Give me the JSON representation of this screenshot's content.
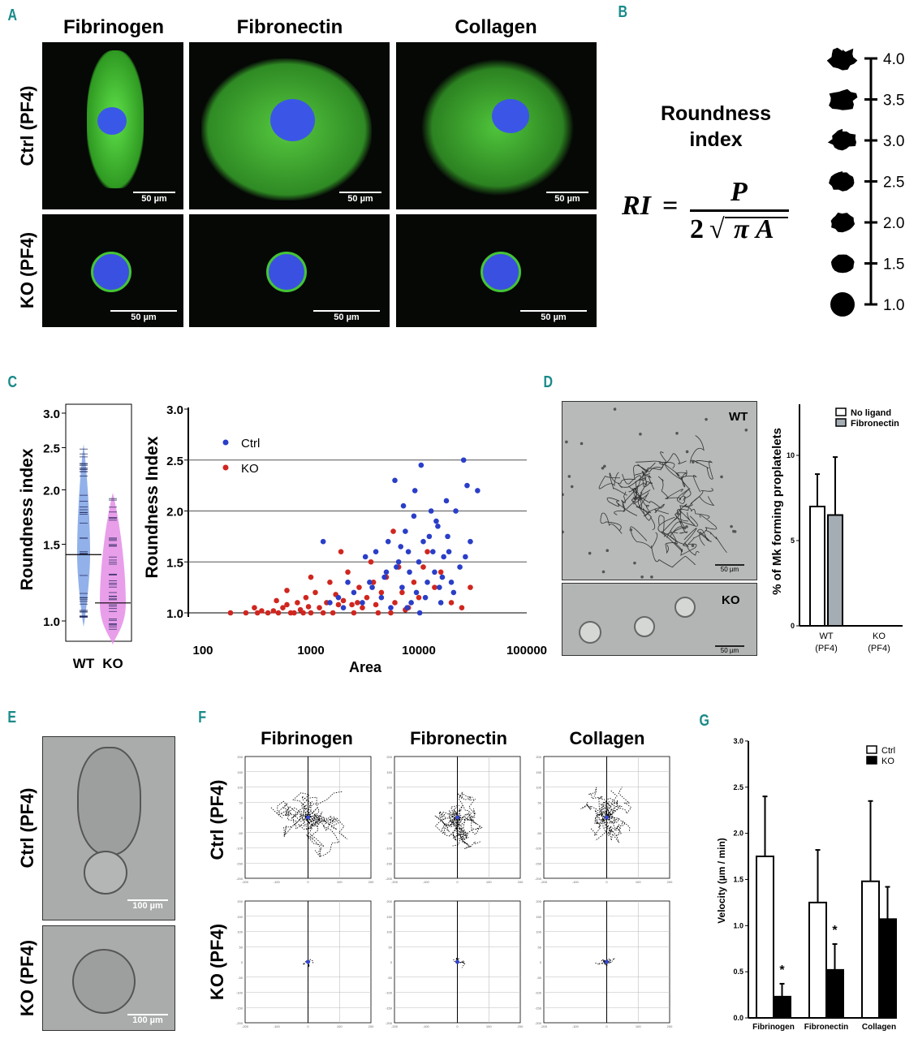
{
  "panels": {
    "a": "A",
    "b": "B",
    "c": "C",
    "d": "D",
    "e": "E",
    "f": "F",
    "g": "G"
  },
  "panel_a": {
    "columns": [
      "Fibrinogen",
      "Fibronectin",
      "Collagen"
    ],
    "rows": [
      "Ctrl (PF4)",
      "KO (PF4)"
    ],
    "scale": "50 µm"
  },
  "panel_b": {
    "title_line1": "Roundness",
    "title_line2": "index",
    "formula_lhs": "RI",
    "formula_num": "P",
    "formula_den_2": "2",
    "formula_den_rad": "π A",
    "scale_ticks": [
      "4.0",
      "3.5",
      "3.0",
      "2.5",
      "2.0",
      "1.5",
      "1.0"
    ]
  },
  "panel_d": {
    "img_wt": "WT",
    "img_ko": "KO",
    "scale": "50 µm"
  },
  "panel_e": {
    "rows": [
      "Ctrl (PF4)",
      "KO (PF4)"
    ],
    "scale": "100 µm"
  },
  "panel_f": {
    "columns": [
      "Fibrinogen",
      "Fibronectin",
      "Collagen"
    ],
    "rows": [
      "Ctrl (PF4)",
      "KO (PF4)"
    ],
    "x_ticks": [
      "-200",
      "-100",
      "0",
      "100",
      "200"
    ],
    "y_ticks": [
      "200",
      "150",
      "100",
      "50",
      "0",
      "-50",
      "-100",
      "-150",
      "-200"
    ]
  },
  "chart_data": [
    {
      "type": "violin",
      "title": "",
      "ylabel": "Roundness index",
      "yscale": "log",
      "ylim": [
        0.85,
        3.0
      ],
      "yticks": [
        "3.0",
        "2.5",
        "2.0",
        "1.5",
        "1.0"
      ],
      "categories": [
        "WT",
        "KO"
      ],
      "medians": [
        1.42,
        1.1
      ],
      "ranges": [
        [
          0.97,
          2.55
        ],
        [
          0.88,
          1.97
        ]
      ],
      "colors": [
        "#7fa3e6",
        "#e58de6"
      ]
    },
    {
      "type": "scatter",
      "xlabel": "Area",
      "ylabel": "Roundness Index",
      "xscale": "log",
      "xlim": [
        100,
        100000
      ],
      "ylim": [
        1.0,
        3.0
      ],
      "xticks": [
        "100",
        "1000",
        "10000",
        "100000"
      ],
      "yticks": [
        "3.0",
        "2.5",
        "2.0",
        "1.5",
        "1.0"
      ],
      "legend": "top-left",
      "series": [
        {
          "name": "Ctrl",
          "color": "#2a3ec8",
          "points": [
            [
              1300,
              1.7
            ],
            [
              1500,
              1.1
            ],
            [
              2000,
              1.05
            ],
            [
              2500,
              1.2
            ],
            [
              3000,
              1.1
            ],
            [
              3500,
              1.3
            ],
            [
              4000,
              1.6
            ],
            [
              4500,
              1.15
            ],
            [
              5000,
              1.4
            ],
            [
              5500,
              1.05
            ],
            [
              6000,
              2.3
            ],
            [
              6500,
              1.5
            ],
            [
              7000,
              1.25
            ],
            [
              7500,
              1.8
            ],
            [
              8000,
              1.6
            ],
            [
              8500,
              1.1
            ],
            [
              9000,
              1.95
            ],
            [
              10000,
              1.5
            ],
            [
              10500,
              2.45
            ],
            [
              11000,
              1.7
            ],
            [
              12000,
              1.3
            ],
            [
              13000,
              2.0
            ],
            [
              14000,
              1.4
            ],
            [
              15000,
              1.85
            ],
            [
              16000,
              1.1
            ],
            [
              17000,
              1.55
            ],
            [
              18000,
              2.1
            ],
            [
              20000,
              1.3
            ],
            [
              22000,
              2.0
            ],
            [
              24000,
              1.45
            ],
            [
              26000,
              2.5
            ],
            [
              28000,
              2.25
            ],
            [
              30000,
              1.7
            ],
            [
              35000,
              2.2
            ],
            [
              9500,
              1.2
            ],
            [
              8200,
              1.4
            ],
            [
              12500,
              1.75
            ],
            [
              11500,
              1.15
            ],
            [
              7800,
              1.05
            ],
            [
              6800,
              1.65
            ],
            [
              14500,
              1.9
            ],
            [
              16500,
              1.35
            ],
            [
              19000,
              1.6
            ],
            [
              21000,
              1.2
            ],
            [
              5200,
              1.7
            ],
            [
              4800,
              1.35
            ],
            [
              3200,
              1.55
            ],
            [
              2200,
              1.3
            ],
            [
              1800,
              1.15
            ],
            [
              10200,
              1.0
            ],
            [
              9200,
              2.2
            ],
            [
              13500,
              1.6
            ],
            [
              15500,
              1.25
            ],
            [
              18500,
              1.75
            ],
            [
              6200,
              1.45
            ],
            [
              7200,
              2.05
            ],
            [
              3700,
              1.25
            ],
            [
              27000,
              1.55
            ]
          ]
        },
        {
          "name": "KO",
          "color": "#d0261f",
          "points": [
            [
              180,
              1.0
            ],
            [
              300,
              1.05
            ],
            [
              320,
              1.0
            ],
            [
              400,
              1.0
            ],
            [
              450,
              1.02
            ],
            [
              500,
              1.0
            ],
            [
              600,
              1.08
            ],
            [
              700,
              1.0
            ],
            [
              800,
              1.03
            ],
            [
              900,
              1.15
            ],
            [
              1000,
              1.0
            ],
            [
              1100,
              1.2
            ],
            [
              1200,
              1.05
            ],
            [
              1400,
              1.1
            ],
            [
              1500,
              1.3
            ],
            [
              1600,
              1.0
            ],
            [
              1800,
              1.08
            ],
            [
              2000,
              1.12
            ],
            [
              2200,
              1.4
            ],
            [
              2500,
              1.0
            ],
            [
              2800,
              1.25
            ],
            [
              3000,
              1.05
            ],
            [
              3300,
              1.15
            ],
            [
              3600,
              1.5
            ],
            [
              4000,
              1.08
            ],
            [
              4500,
              1.2
            ],
            [
              5000,
              1.35
            ],
            [
              5500,
              1.0
            ],
            [
              6000,
              1.1
            ],
            [
              6500,
              1.45
            ],
            [
              7000,
              1.2
            ],
            [
              8000,
              1.05
            ],
            [
              9000,
              1.3
            ],
            [
              10000,
              1.15
            ],
            [
              12000,
              1.6
            ],
            [
              14000,
              1.25
            ],
            [
              16000,
              1.4
            ],
            [
              20000,
              1.1
            ],
            [
              25000,
              1.05
            ],
            [
              30000,
              1.25
            ],
            [
              250,
              1.0
            ],
            [
              350,
              1.02
            ],
            [
              550,
              1.05
            ],
            [
              650,
              1.0
            ],
            [
              750,
              1.1
            ],
            [
              850,
              1.0
            ],
            [
              950,
              1.06
            ],
            [
              1300,
              1.0
            ],
            [
              1700,
              1.18
            ],
            [
              2400,
              1.08
            ],
            [
              3800,
              1.3
            ],
            [
              5800,
              1.8
            ],
            [
              7500,
              1.03
            ],
            [
              11000,
              1.45
            ],
            [
              600,
              1.22
            ],
            [
              1900,
              1.6
            ],
            [
              4200,
              1.0
            ],
            [
              2700,
              1.1
            ],
            [
              1000,
              1.35
            ],
            [
              480,
              1.12
            ]
          ]
        }
      ]
    },
    {
      "type": "bar",
      "ylabel": "% of Mk forming proplatelets",
      "ylim": [
        0,
        13
      ],
      "yticks": [
        "0",
        "5",
        "10"
      ],
      "categories": [
        "WT\n(PF4)",
        "KO\n(PF4)"
      ],
      "cat_line1": [
        "WT",
        "KO"
      ],
      "cat_line2": [
        "(PF4)",
        "(PF4)"
      ],
      "legend": "top-right",
      "series": [
        {
          "name": "No ligand",
          "color": "#ffffff",
          "values": [
            7.0,
            0
          ],
          "errors": [
            1.9,
            0
          ]
        },
        {
          "name": "Fibronectin",
          "color": "#a5adb4",
          "values": [
            6.5,
            0
          ],
          "errors": [
            3.4,
            0
          ]
        }
      ]
    },
    {
      "type": "bar",
      "ylabel": "Velocity (µm / min)",
      "ylim": [
        0,
        3.0
      ],
      "yticks": [
        "0.0",
        "0.5",
        "1.0",
        "1.5",
        "2.0",
        "2.5",
        "3.0"
      ],
      "categories": [
        "Fibrinogen",
        "Fibronectin",
        "Collagen"
      ],
      "legend": "top-right",
      "significance": [
        "*",
        "*",
        ""
      ],
      "series": [
        {
          "name": "Ctrl",
          "color": "#ffffff",
          "values": [
            1.75,
            1.25,
            1.48
          ],
          "errors": [
            0.65,
            0.57,
            0.87
          ]
        },
        {
          "name": "KO",
          "color": "#000000",
          "values": [
            0.23,
            0.52,
            1.07
          ],
          "errors": [
            0.14,
            0.28,
            0.35
          ]
        }
      ]
    }
  ]
}
